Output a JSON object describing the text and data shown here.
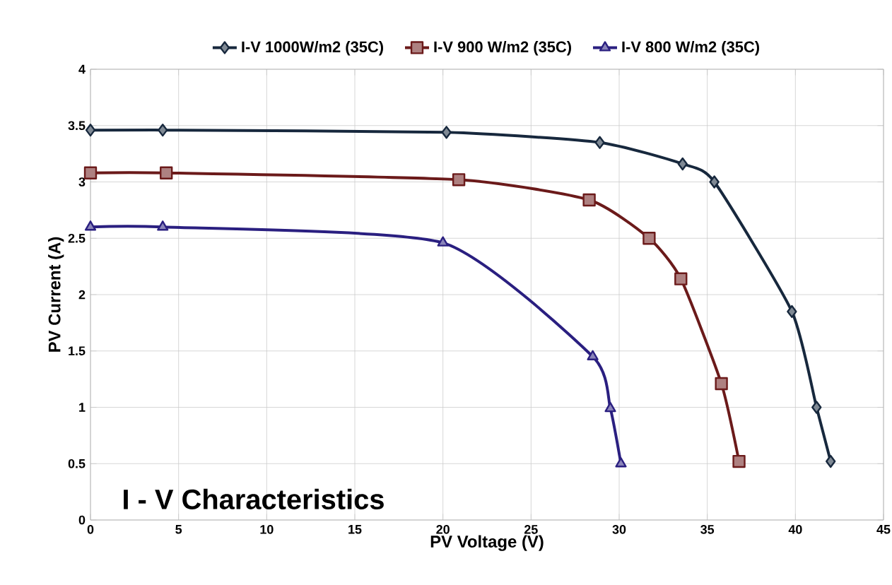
{
  "chart_data": {
    "type": "line",
    "xlabel": "PV Voltage (V)",
    "ylabel": "PV Current (A)",
    "annotations": [
      "I - V Characteristics"
    ],
    "xlim": [
      0,
      45
    ],
    "xticks": [
      0,
      5,
      10,
      15,
      20,
      25,
      30,
      35,
      40,
      45
    ],
    "ylim": [
      0,
      4
    ],
    "yticks": [
      0,
      0.5,
      1,
      1.5,
      2,
      2.5,
      3,
      3.5,
      4
    ],
    "grid": true,
    "legend": "top",
    "series": [
      {
        "name": "I-V 1000W/m2 (35C)",
        "color": "#17283d",
        "marker": "diamond",
        "x": [
          0,
          4.1,
          20.2,
          28.9,
          33.6,
          35.4,
          39.8,
          41.2,
          42.0
        ],
        "values": [
          3.46,
          3.46,
          3.44,
          3.35,
          3.16,
          3.0,
          1.85,
          1.0,
          0.52
        ]
      },
      {
        "name": "I-V 900 W/m2 (35C)",
        "color": "#6b1a1a",
        "marker": "square",
        "x": [
          0,
          4.3,
          20.9,
          28.3,
          31.7,
          33.5,
          35.8,
          36.8
        ],
        "values": [
          3.08,
          3.08,
          3.02,
          2.84,
          2.5,
          2.14,
          1.21,
          0.52
        ]
      },
      {
        "name": "I-V 800 W/m2 (35C)",
        "color": "#2a1f80",
        "marker": "triangle",
        "x": [
          0,
          4.1,
          20.0,
          28.5,
          29.5,
          30.1
        ],
        "values": [
          2.6,
          2.6,
          2.46,
          1.45,
          0.99,
          0.5
        ]
      }
    ]
  }
}
